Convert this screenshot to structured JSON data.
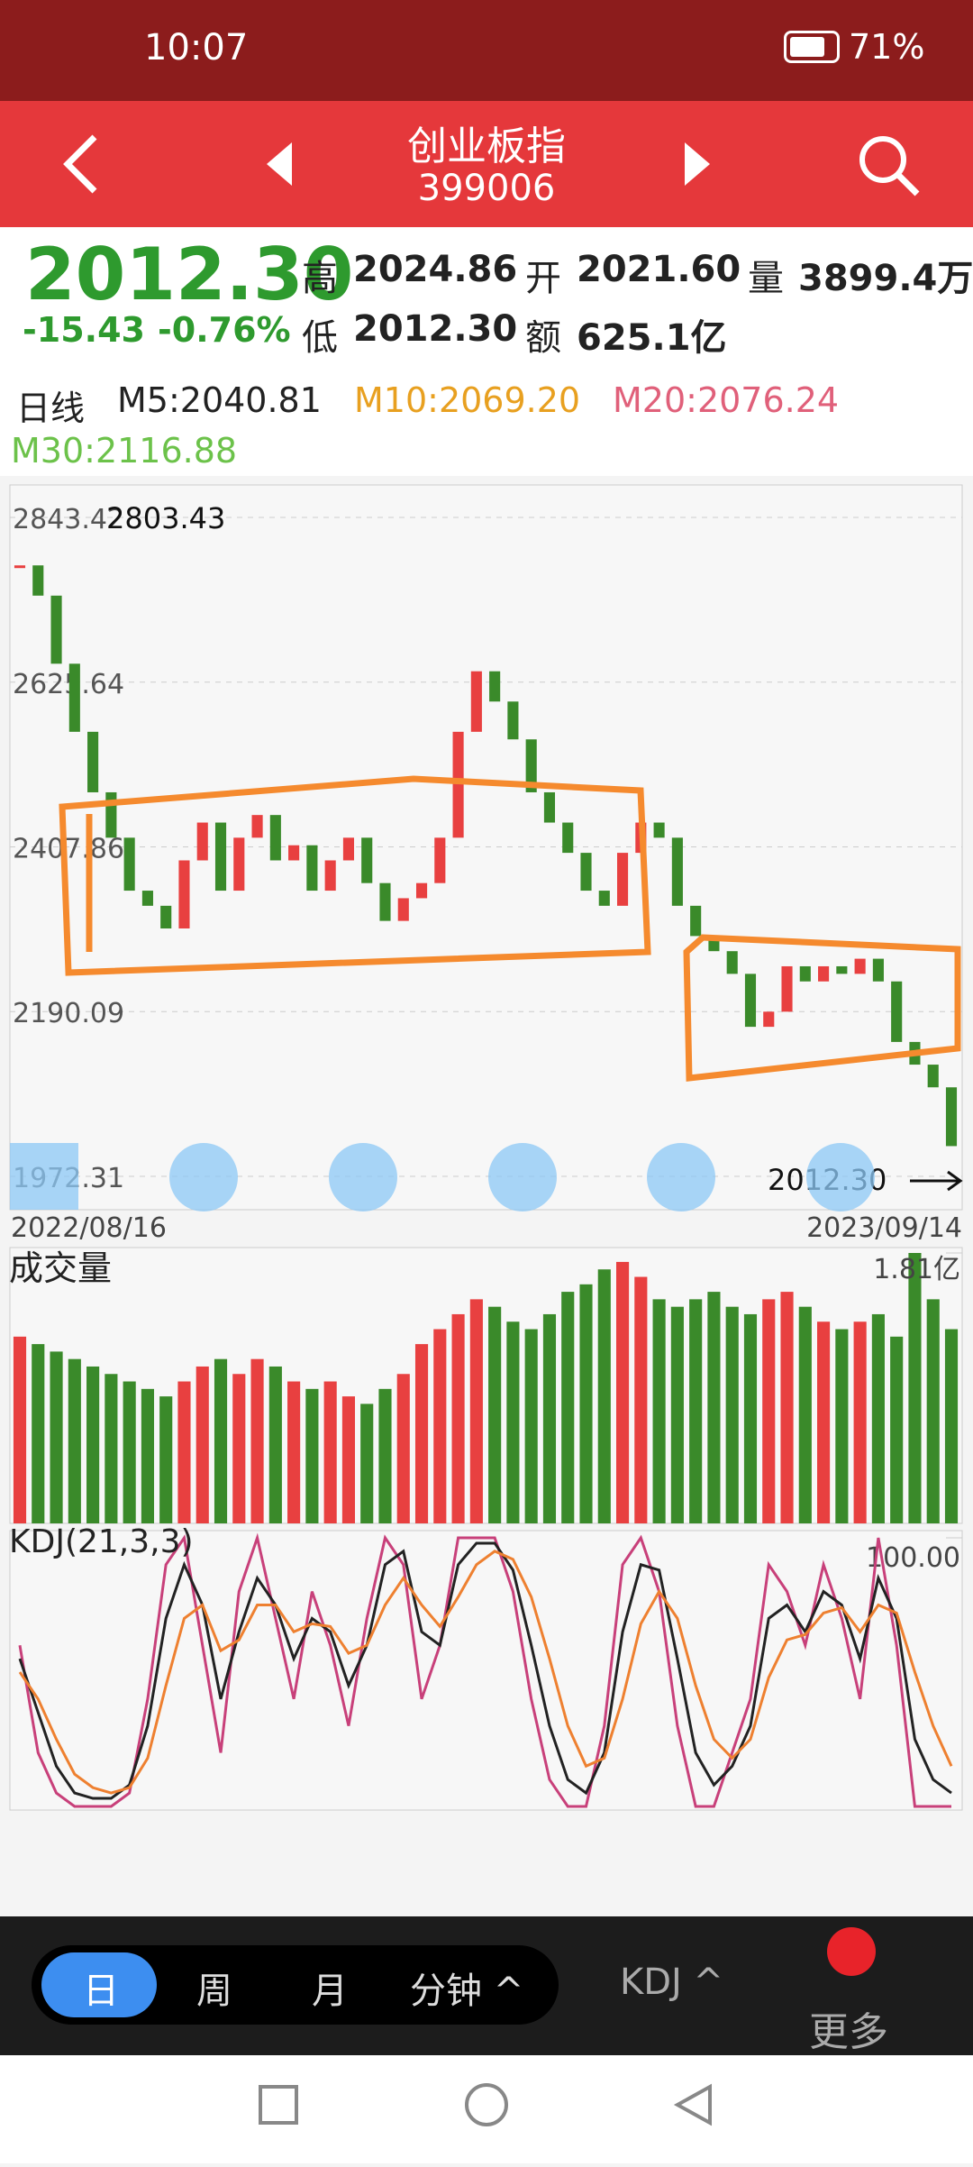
{
  "status_bar": {
    "time": "10:07",
    "battery": "71%"
  },
  "header": {
    "title": "创业板指",
    "code": "399006"
  },
  "quote": {
    "price": "2012.30",
    "change": "-15.43",
    "change_pct": "-0.76%",
    "high_label": "高",
    "high": "2024.86",
    "open_label": "开",
    "open": "2021.60",
    "volume_label": "量",
    "volume": "3899.4万",
    "low_label": "低",
    "low": "2012.30",
    "turnover_label": "额",
    "turnover": "625.1亿"
  },
  "ma_legend": {
    "period": "日线",
    "items": [
      {
        "text": "M5:2040.81",
        "color": "#222222"
      },
      {
        "text": "M10:2069.20",
        "color": "#e8a020"
      },
      {
        "text": "M20:2076.24",
        "color": "#e0607a"
      },
      {
        "text": "M30:2116.88",
        "color": "#6cc24a"
      }
    ]
  },
  "price_chart": {
    "ylim": [
      1972.31,
      2843.42
    ],
    "yticks": [
      2843.42,
      2625.64,
      2407.86,
      2190.09,
      1972.31
    ],
    "up_color": "#e84040",
    "down_color": "#3a8a2a",
    "closes": [
      2780,
      2740,
      2650,
      2560,
      2480,
      2420,
      2350,
      2330,
      2300,
      2390,
      2440,
      2350,
      2420,
      2450,
      2390,
      2410,
      2350,
      2390,
      2420,
      2360,
      2310,
      2340,
      2360,
      2420,
      2560,
      2640,
      2600,
      2550,
      2480,
      2440,
      2400,
      2350,
      2330,
      2400,
      2440,
      2420,
      2330,
      2290,
      2270,
      2240,
      2170,
      2190,
      2250,
      2230,
      2250,
      2240,
      2260,
      2230,
      2150,
      2120,
      2090,
      2012.3
    ],
    "max_label": "2803.43",
    "last_label": "2012.30",
    "start_date": "2022/08/16",
    "end_date": "2023/09/14"
  },
  "volume_chart": {
    "title": "成交量",
    "ylim": [
      0,
      1.81
    ],
    "yticks": [
      {
        "value": 1.81,
        "label": "1.81亿"
      }
    ],
    "values": [
      1.25,
      1.2,
      1.15,
      1.1,
      1.05,
      1.0,
      0.95,
      0.9,
      0.85,
      0.95,
      1.05,
      1.1,
      1.0,
      1.1,
      1.05,
      0.95,
      0.9,
      0.95,
      0.85,
      0.8,
      0.9,
      1.0,
      1.2,
      1.3,
      1.4,
      1.5,
      1.45,
      1.35,
      1.3,
      1.4,
      1.55,
      1.6,
      1.7,
      1.75,
      1.65,
      1.5,
      1.45,
      1.5,
      1.55,
      1.45,
      1.4,
      1.5,
      1.55,
      1.45,
      1.35,
      1.3,
      1.35,
      1.4,
      1.25,
      1.81,
      1.5,
      1.3
    ]
  },
  "kdj_chart": {
    "title": "KDJ(21,3,3)",
    "ylim": [
      0,
      100
    ],
    "yticks": [
      {
        "value": 100,
        "label": "100.00"
      }
    ],
    "series": [
      {
        "color": "#c8407a",
        "values": [
          60,
          20,
          5,
          0,
          0,
          0,
          5,
          40,
          90,
          100,
          60,
          20,
          80,
          100,
          70,
          40,
          80,
          60,
          30,
          70,
          100,
          90,
          40,
          60,
          100,
          100,
          100,
          80,
          40,
          10,
          0,
          0,
          30,
          90,
          100,
          80,
          30,
          0,
          0,
          20,
          40,
          90,
          80,
          60,
          90,
          70,
          40,
          100,
          60,
          0,
          0,
          0
        ]
      },
      {
        "color": "#222222",
        "values": [
          55,
          35,
          15,
          5,
          3,
          3,
          8,
          30,
          70,
          90,
          75,
          40,
          65,
          85,
          75,
          55,
          70,
          65,
          45,
          60,
          90,
          95,
          65,
          60,
          90,
          98,
          98,
          88,
          60,
          30,
          10,
          5,
          20,
          65,
          90,
          88,
          55,
          20,
          8,
          15,
          30,
          70,
          75,
          65,
          80,
          75,
          55,
          85,
          70,
          25,
          10,
          5
        ]
      },
      {
        "color": "#ee8030",
        "values": [
          50,
          40,
          25,
          12,
          7,
          5,
          7,
          18,
          45,
          70,
          75,
          58,
          62,
          75,
          75,
          65,
          68,
          67,
          57,
          60,
          75,
          85,
          75,
          67,
          78,
          90,
          95,
          92,
          78,
          55,
          30,
          15,
          18,
          40,
          68,
          80,
          70,
          45,
          25,
          18,
          25,
          48,
          62,
          64,
          72,
          74,
          65,
          75,
          72,
          50,
          30,
          15
        ]
      }
    ]
  },
  "toolbar": {
    "tabs": [
      "日",
      "周",
      "月",
      "分钟 ^"
    ],
    "indicator": "KDJ ^",
    "more": "更多"
  }
}
